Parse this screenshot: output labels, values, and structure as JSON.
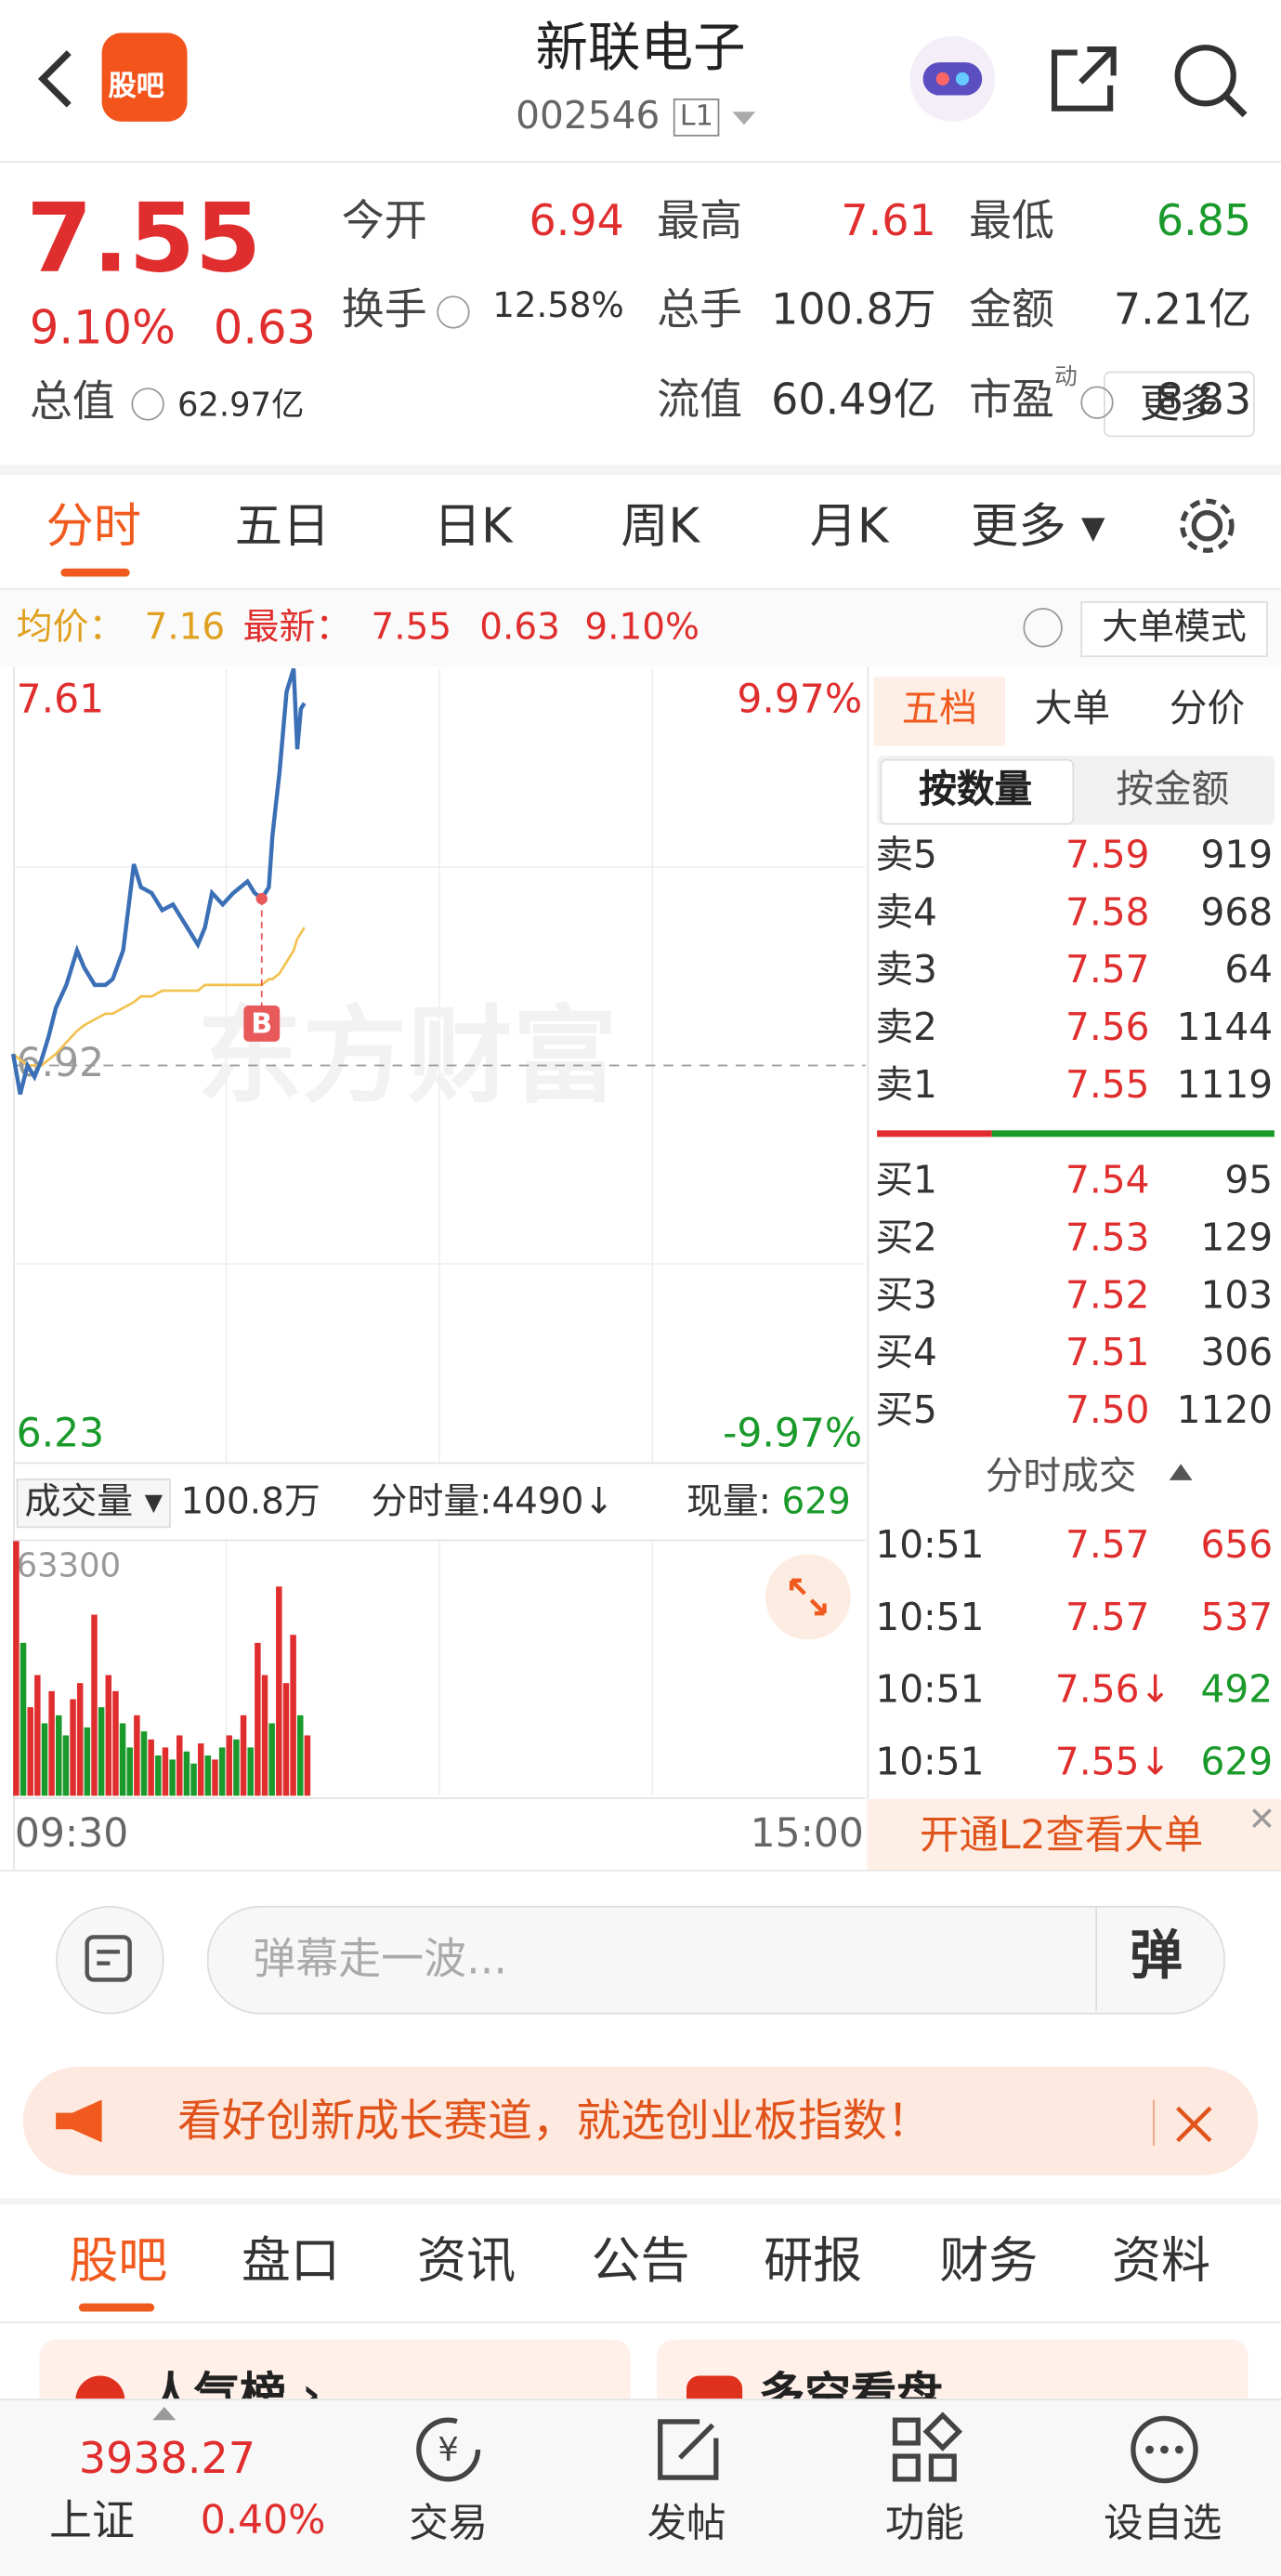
{
  "header": {
    "logo": "股吧",
    "title": "新联电子",
    "code": "002546",
    "level": "L1"
  },
  "quote": {
    "price": "7.55",
    "change_pct": "9.10%",
    "change": "0.63",
    "total_value_label": "总值",
    "total_value": "62.97亿",
    "stats": [
      {
        "label": "今开",
        "value": "6.94"
      },
      {
        "label": "最高",
        "value": "7.61"
      },
      {
        "label": "最低",
        "value": "6.85"
      },
      {
        "label": "换手",
        "value": "12.58%"
      },
      {
        "label": "总手",
        "value": "100.8万"
      },
      {
        "label": "金额",
        "value": "7.21亿"
      },
      {
        "label": "流值",
        "value": "60.49亿"
      },
      {
        "label": "市盈",
        "sup": "动",
        "value": "8.83"
      }
    ],
    "more": "更多"
  },
  "tabs": [
    "分时",
    "五日",
    "日K",
    "周K",
    "月K",
    "更多"
  ],
  "info_bar": {
    "avg_label": "均价：",
    "avg": "7.16",
    "latest_label": "最新：",
    "latest": "7.55",
    "change": "0.63",
    "change_pct": "9.10%",
    "mode": "大单模式"
  },
  "chart": {
    "type": "line",
    "ylim": [
      6.23,
      7.61
    ],
    "yticks": [
      7.61,
      6.92,
      6.23
    ],
    "y2_labels": [
      "9.97%",
      "-9.97%"
    ],
    "xlim": [
      0,
      240
    ],
    "xticks": [
      {
        "value": 0,
        "label": "09:30"
      },
      {
        "value": 240,
        "label": "15:00"
      }
    ],
    "minutes": [
      0,
      2,
      4,
      6,
      8,
      10,
      12,
      15,
      18,
      20,
      23,
      26,
      28,
      31,
      34,
      36,
      39,
      42,
      45,
      48,
      52,
      54,
      56,
      59,
      62,
      66,
      68,
      70,
      72,
      73,
      75,
      77,
      79,
      80,
      81,
      82
    ],
    "prices": [
      6.94,
      6.87,
      6.92,
      6.9,
      6.93,
      6.97,
      7.02,
      7.06,
      7.12,
      7.09,
      7.06,
      7.06,
      7.07,
      7.12,
      7.27,
      7.23,
      7.22,
      7.19,
      7.2,
      7.17,
      7.13,
      7.16,
      7.22,
      7.2,
      7.22,
      7.24,
      7.22,
      7.21,
      7.23,
      7.32,
      7.43,
      7.57,
      7.61,
      7.47,
      7.54,
      7.55
    ],
    "avg": [
      6.94,
      6.93,
      6.92,
      6.92,
      6.92,
      6.93,
      6.94,
      6.96,
      6.98,
      6.99,
      7.0,
      7.01,
      7.01,
      7.02,
      7.03,
      7.04,
      7.04,
      7.05,
      7.05,
      7.05,
      7.05,
      7.06,
      7.06,
      7.06,
      7.06,
      7.06,
      7.06,
      7.06,
      7.07,
      7.07,
      7.08,
      7.1,
      7.12,
      7.14,
      7.15,
      7.16
    ],
    "price_color": "#3b6fb6",
    "avg_color": "#f2c14e",
    "marker": {
      "label": "B",
      "minute": 70,
      "price": 7.21
    },
    "watermark": "东方财富",
    "volume": {
      "label": "成交量",
      "total": "100.8万",
      "minute_vol": "分时量:4490↓",
      "current_label": "现量:",
      "current": "629",
      "ylim": [
        0,
        63300
      ],
      "yticks": [
        63300
      ],
      "minutes": [
        0,
        2,
        4,
        6,
        8,
        10,
        12,
        14,
        16,
        18,
        20,
        22,
        24,
        26,
        28,
        30,
        32,
        34,
        36,
        38,
        40,
        42,
        44,
        46,
        48,
        50,
        52,
        54,
        56,
        58,
        60,
        62,
        64,
        66,
        68,
        70,
        72,
        74,
        76,
        78,
        80,
        82
      ],
      "values": [
        63300,
        38000,
        22000,
        30000,
        18000,
        26000,
        20000,
        15000,
        24000,
        28000,
        17000,
        45000,
        22000,
        30000,
        26000,
        18000,
        12000,
        20000,
        16000,
        14000,
        10000,
        12000,
        9000,
        15000,
        11000,
        8000,
        13000,
        10000,
        9000,
        12000,
        15000,
        14000,
        20000,
        12000,
        38000,
        30000,
        18000,
        52000,
        28000,
        40000,
        20000,
        15000
      ],
      "colors": [
        "#e02e2e",
        "#1a9a2a",
        "#e02e2e",
        "#e02e2e",
        "#1a9a2a",
        "#e02e2e",
        "#1a9a2a",
        "#1a9a2a",
        "#e02e2e",
        "#e02e2e",
        "#1a9a2a",
        "#e02e2e",
        "#1a9a2a",
        "#e02e2e",
        "#e02e2e",
        "#1a9a2a",
        "#1a9a2a",
        "#e02e2e",
        "#1a9a2a",
        "#e02e2e",
        "#1a9a2a",
        "#e02e2e",
        "#1a9a2a",
        "#e02e2e",
        "#1a9a2a",
        "#1a9a2a",
        "#e02e2e",
        "#1a9a2a",
        "#e02e2e",
        "#1a9a2a",
        "#e02e2e",
        "#1a9a2a",
        "#e02e2e",
        "#1a9a2a",
        "#e02e2e",
        "#e02e2e",
        "#1a9a2a",
        "#e02e2e",
        "#e02e2e",
        "#e02e2e",
        "#1a9a2a",
        "#e02e2e"
      ]
    }
  },
  "order_book": {
    "tabs": [
      "五档",
      "大单",
      "分价"
    ],
    "sub_tabs": [
      "按数量",
      "按金额"
    ],
    "asks": [
      [
        "卖5",
        "7.59",
        "919"
      ],
      [
        "卖4",
        "7.58",
        "968"
      ],
      [
        "卖3",
        "7.57",
        "64"
      ],
      [
        "卖2",
        "7.56",
        "1144"
      ],
      [
        "卖1",
        "7.55",
        "1119"
      ]
    ],
    "bids": [
      [
        "买1",
        "7.54",
        "95"
      ],
      [
        "买2",
        "7.53",
        "129"
      ],
      [
        "买3",
        "7.52",
        "103"
      ],
      [
        "买4",
        "7.51",
        "306"
      ],
      [
        "买5",
        "7.50",
        "1120"
      ]
    ],
    "trades_title": "分时成交",
    "trades": [
      [
        "10:51",
        "7.57",
        "656"
      ],
      [
        "10:51",
        "7.57",
        "537"
      ],
      [
        "10:51",
        "7.56↓",
        "492"
      ],
      [
        "10:51",
        "7.55↓",
        "629"
      ]
    ],
    "l2": "开通L2查看大单"
  },
  "comment": {
    "placeholder": "弹幕走一波...",
    "button": "弹"
  },
  "banner": "看好创新成长赛道，就选创业板指数！",
  "sections": [
    "股吧",
    "盘口",
    "资讯",
    "公告",
    "研报",
    "财务",
    "资料"
  ],
  "cards": [
    "人气榜 ›",
    "多空看盘"
  ],
  "bottom_nav": {
    "index_value": "3938.27",
    "index_name": "上证",
    "index_pct": "0.40%",
    "items": [
      "交易",
      "发帖",
      "功能",
      "设自选"
    ]
  }
}
